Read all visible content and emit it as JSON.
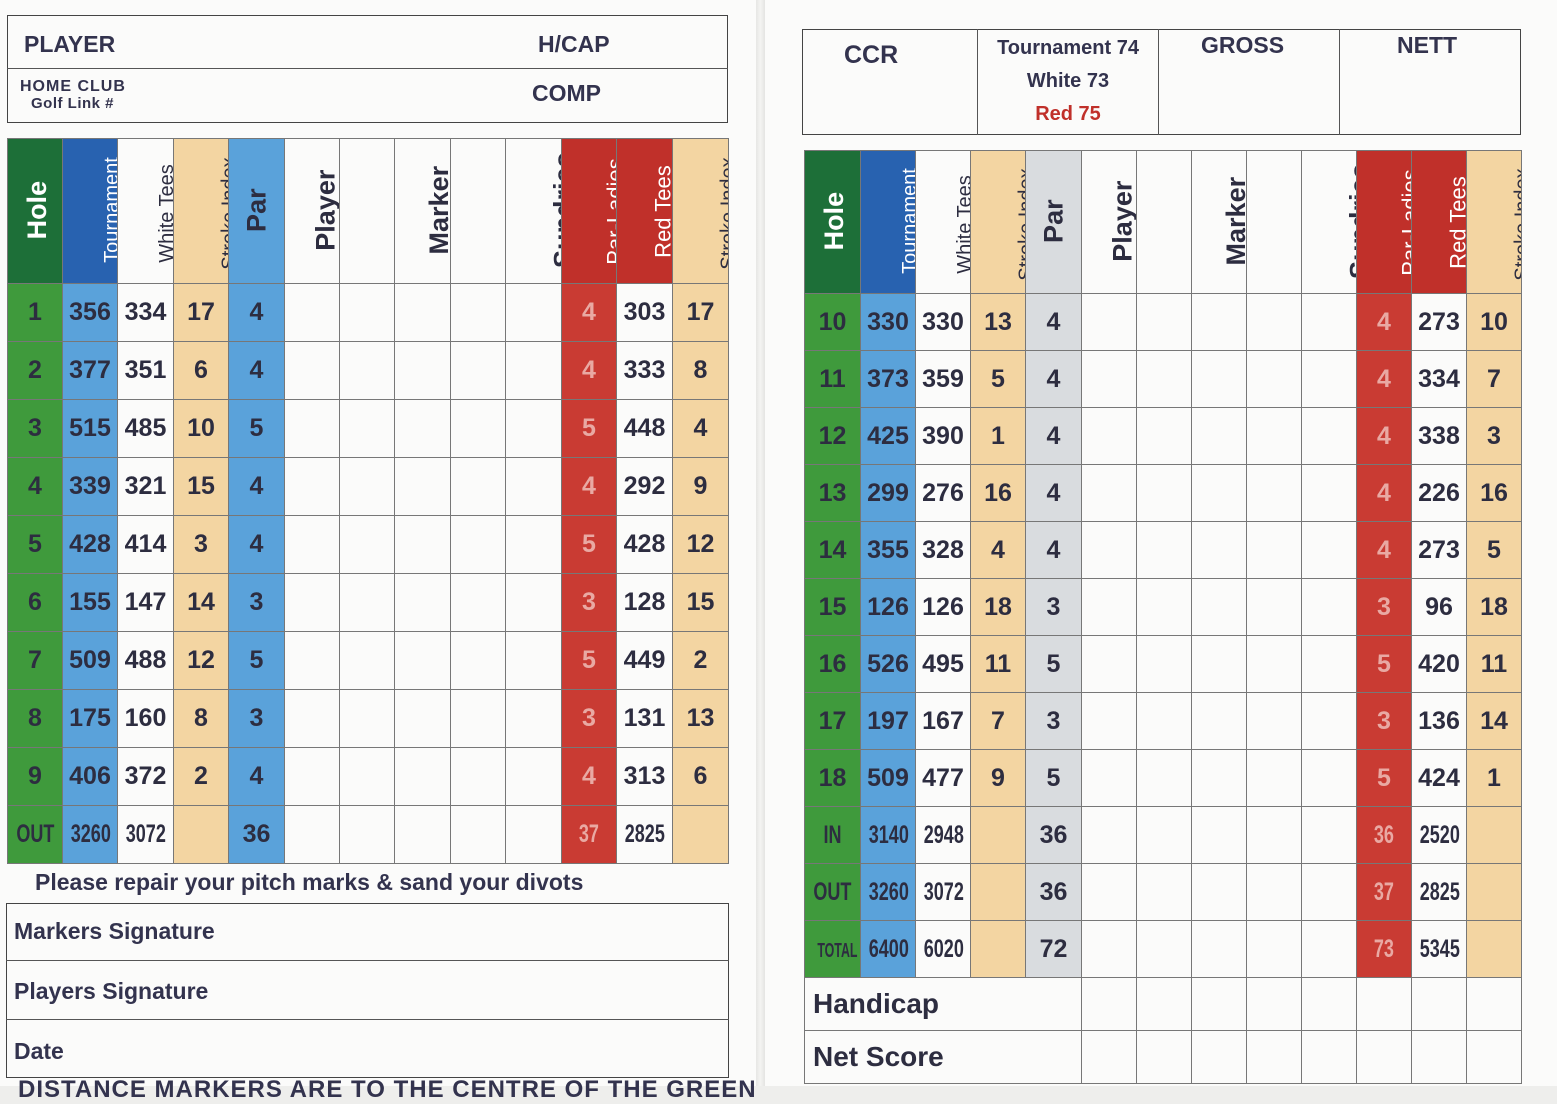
{
  "left": {
    "header": {
      "player_label": "PLAYER",
      "hcap_label": "H/CAP",
      "home_club_label": "HOME CLUB",
      "golf_link_label": "Golf Link #",
      "comp_label": "COMP"
    },
    "columns": [
      "Hole",
      "Tournament Tees",
      "White Tees",
      "Stroke Index",
      "Par",
      "Player",
      "",
      "Marker",
      "",
      "Sundries",
      "Par-Ladies",
      "Red Tees",
      "Stroke Index"
    ],
    "rows": [
      {
        "hole": "1",
        "tournament": "356",
        "white": "334",
        "si": "17",
        "par": "4",
        "par_ladies": "4",
        "red": "303",
        "si_ladies": "17"
      },
      {
        "hole": "2",
        "tournament": "377",
        "white": "351",
        "si": "6",
        "par": "4",
        "par_ladies": "4",
        "red": "333",
        "si_ladies": "8"
      },
      {
        "hole": "3",
        "tournament": "515",
        "white": "485",
        "si": "10",
        "par": "5",
        "par_ladies": "5",
        "red": "448",
        "si_ladies": "4"
      },
      {
        "hole": "4",
        "tournament": "339",
        "white": "321",
        "si": "15",
        "par": "4",
        "par_ladies": "4",
        "red": "292",
        "si_ladies": "9"
      },
      {
        "hole": "5",
        "tournament": "428",
        "white": "414",
        "si": "3",
        "par": "4",
        "par_ladies": "5",
        "red": "428",
        "si_ladies": "12"
      },
      {
        "hole": "6",
        "tournament": "155",
        "white": "147",
        "si": "14",
        "par": "3",
        "par_ladies": "3",
        "red": "128",
        "si_ladies": "15"
      },
      {
        "hole": "7",
        "tournament": "509",
        "white": "488",
        "si": "12",
        "par": "5",
        "par_ladies": "5",
        "red": "449",
        "si_ladies": "2"
      },
      {
        "hole": "8",
        "tournament": "175",
        "white": "160",
        "si": "8",
        "par": "3",
        "par_ladies": "3",
        "red": "131",
        "si_ladies": "13"
      },
      {
        "hole": "9",
        "tournament": "406",
        "white": "372",
        "si": "2",
        "par": "4",
        "par_ladies": "4",
        "red": "313",
        "si_ladies": "6"
      }
    ],
    "out": {
      "hole": "OUT",
      "tournament": "3260",
      "white": "3072",
      "si": "",
      "par": "36",
      "par_ladies": "37",
      "red": "2825",
      "si_ladies": ""
    },
    "notice": "Please repair your pitch marks & sand your divots",
    "markers_signature": "Markers Signature",
    "players_signature": "Players Signature",
    "date": "Date",
    "footer_partial": "DISTANCE MARKERS ARE TO THE CENTRE OF THE GREEN"
  },
  "right": {
    "header": {
      "ccr_label": "CCR",
      "tournament_rating": "Tournament 74",
      "white_rating": "White 73",
      "red_rating": "Red 75",
      "gross_label": "GROSS",
      "nett_label": "NETT"
    },
    "columns": [
      "Hole",
      "Tournament Tees",
      "White Tees",
      "Stroke Index",
      "Par",
      "Player",
      "",
      "Marker",
      "",
      "Sundries",
      "Par-Ladies",
      "Red Tees",
      "Stroke Index"
    ],
    "rows": [
      {
        "hole": "10",
        "tournament": "330",
        "white": "330",
        "si": "13",
        "par": "4",
        "par_ladies": "4",
        "red": "273",
        "si_ladies": "10"
      },
      {
        "hole": "11",
        "tournament": "373",
        "white": "359",
        "si": "5",
        "par": "4",
        "par_ladies": "4",
        "red": "334",
        "si_ladies": "7"
      },
      {
        "hole": "12",
        "tournament": "425",
        "white": "390",
        "si": "1",
        "par": "4",
        "par_ladies": "4",
        "red": "338",
        "si_ladies": "3"
      },
      {
        "hole": "13",
        "tournament": "299",
        "white": "276",
        "si": "16",
        "par": "4",
        "par_ladies": "4",
        "red": "226",
        "si_ladies": "16"
      },
      {
        "hole": "14",
        "tournament": "355",
        "white": "328",
        "si": "4",
        "par": "4",
        "par_ladies": "4",
        "red": "273",
        "si_ladies": "5"
      },
      {
        "hole": "15",
        "tournament": "126",
        "white": "126",
        "si": "18",
        "par": "3",
        "par_ladies": "3",
        "red": "96",
        "si_ladies": "18"
      },
      {
        "hole": "16",
        "tournament": "526",
        "white": "495",
        "si": "11",
        "par": "5",
        "par_ladies": "5",
        "red": "420",
        "si_ladies": "11"
      },
      {
        "hole": "17",
        "tournament": "197",
        "white": "167",
        "si": "7",
        "par": "3",
        "par_ladies": "3",
        "red": "136",
        "si_ladies": "14"
      },
      {
        "hole": "18",
        "tournament": "509",
        "white": "477",
        "si": "9",
        "par": "5",
        "par_ladies": "5",
        "red": "424",
        "si_ladies": "1"
      }
    ],
    "in": {
      "hole": "IN",
      "tournament": "3140",
      "white": "2948",
      "si": "",
      "par": "36",
      "par_ladies": "36",
      "red": "2520",
      "si_ladies": ""
    },
    "out": {
      "hole": "OUT",
      "tournament": "3260",
      "white": "3072",
      "si": "",
      "par": "36",
      "par_ladies": "37",
      "red": "2825",
      "si_ladies": ""
    },
    "total": {
      "hole": "TOTAL",
      "tournament": "6400",
      "white": "6020",
      "si": "",
      "par": "72",
      "par_ladies": "73",
      "red": "5345",
      "si_ladies": ""
    },
    "handicap_label": "Handicap",
    "net_score_label": "Net Score"
  },
  "colors": {
    "hole_green": "#3f9a3c",
    "tournament_blue": "#5aa2da",
    "stroke_index_tan": "#f3d5a2",
    "ladies_red": "#c93b33",
    "right_par_grey": "#d9dcdf"
  }
}
